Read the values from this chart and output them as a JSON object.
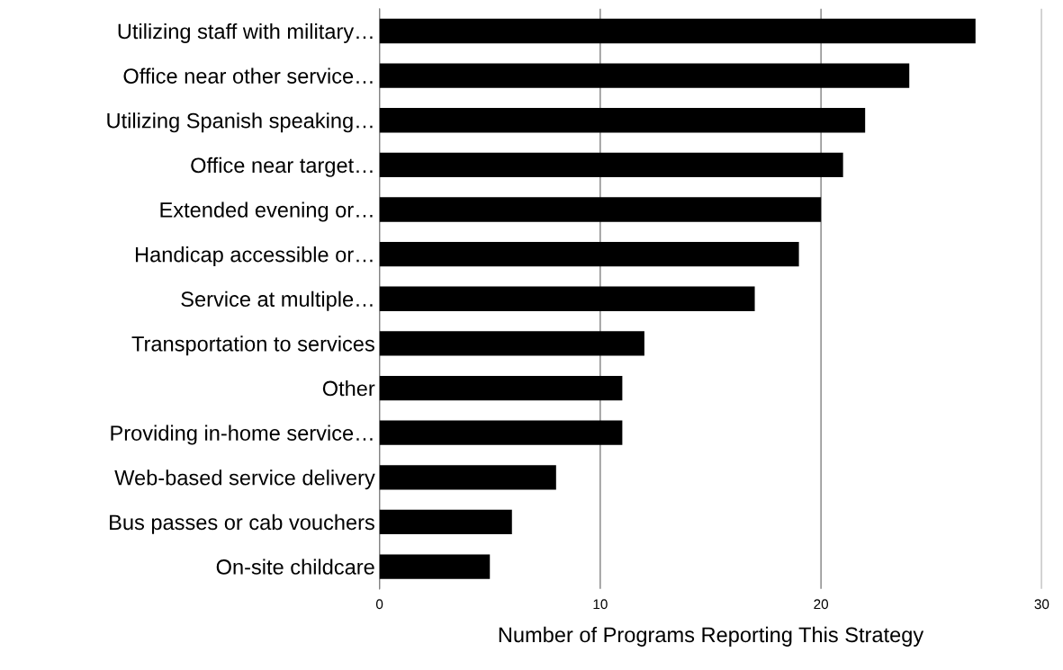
{
  "chart_data": {
    "type": "bar",
    "orientation": "horizontal",
    "xlabel": "Number of Programs Reporting This Strategy",
    "categories": [
      "Utilizing staff with military…",
      "Office near other service…",
      "Utilizing Spanish speaking…",
      "Office near target…",
      "Extended evening or…",
      "Handicap accessible or…",
      "Service at multiple…",
      "Transportation to services",
      "Other",
      "Providing in-home service…",
      "Web-based service delivery",
      "Bus passes or cab vouchers",
      "On-site childcare"
    ],
    "values": [
      27,
      24,
      22,
      21,
      20,
      19,
      17,
      12,
      11,
      11,
      8,
      6,
      5
    ],
    "color": "#000000",
    "xlim": [
      0,
      30
    ],
    "xticks": [
      0,
      10,
      20,
      30
    ],
    "grid": "x"
  }
}
